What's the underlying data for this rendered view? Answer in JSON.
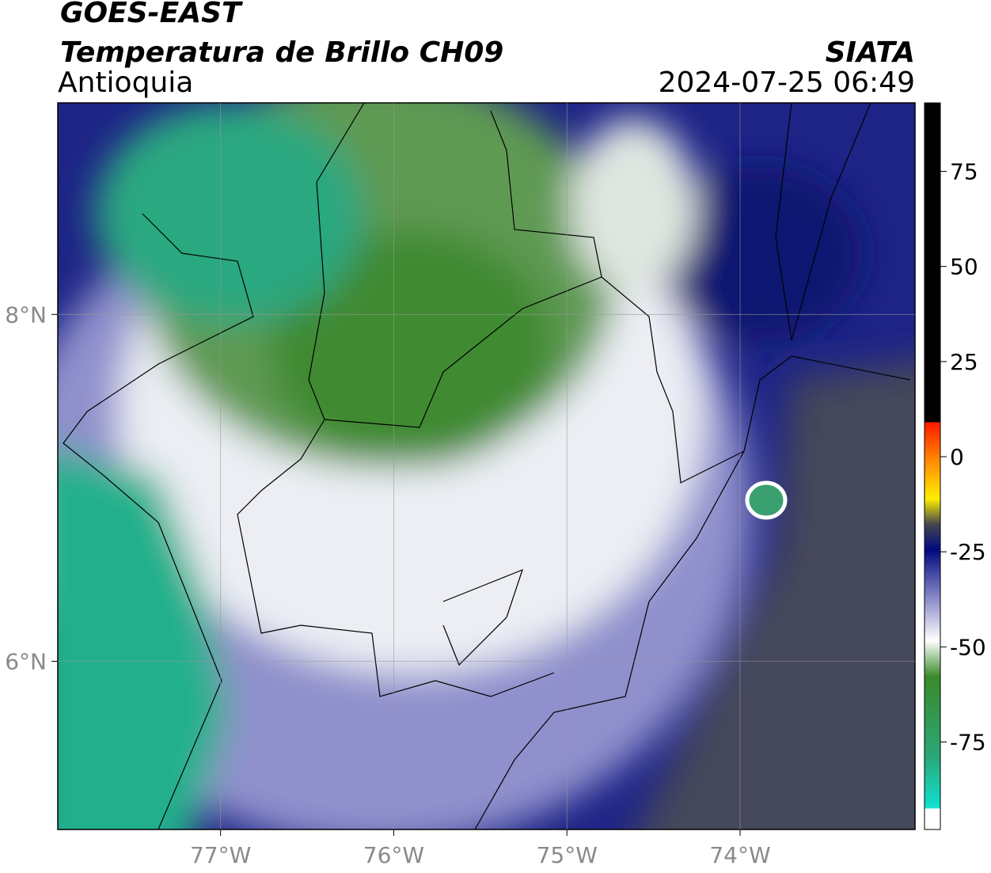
{
  "header": {
    "title": "GOES-EAST",
    "subtitle": "Temperatura de Brillo CH09",
    "region": "Antioquia",
    "source": "SIATA",
    "timestamp": "2024-07-25 06:49"
  },
  "map": {
    "xlim": [
      -77.94,
      -72.99
    ],
    "ylim": [
      5.03,
      9.22
    ],
    "xticks": [
      {
        "value": -77,
        "label": "77°W"
      },
      {
        "value": -76,
        "label": "76°W"
      },
      {
        "value": -75,
        "label": "75°W"
      },
      {
        "value": -74,
        "label": "74°W"
      }
    ],
    "yticks": [
      {
        "value": 8,
        "label": "8°N"
      },
      {
        "value": 6,
        "label": "6°N"
      }
    ],
    "grid": true
  },
  "colorbar": {
    "lim": [
      -98,
      93
    ],
    "ticks": [
      75,
      50,
      25,
      0,
      -25,
      -50,
      -75
    ]
  }
}
